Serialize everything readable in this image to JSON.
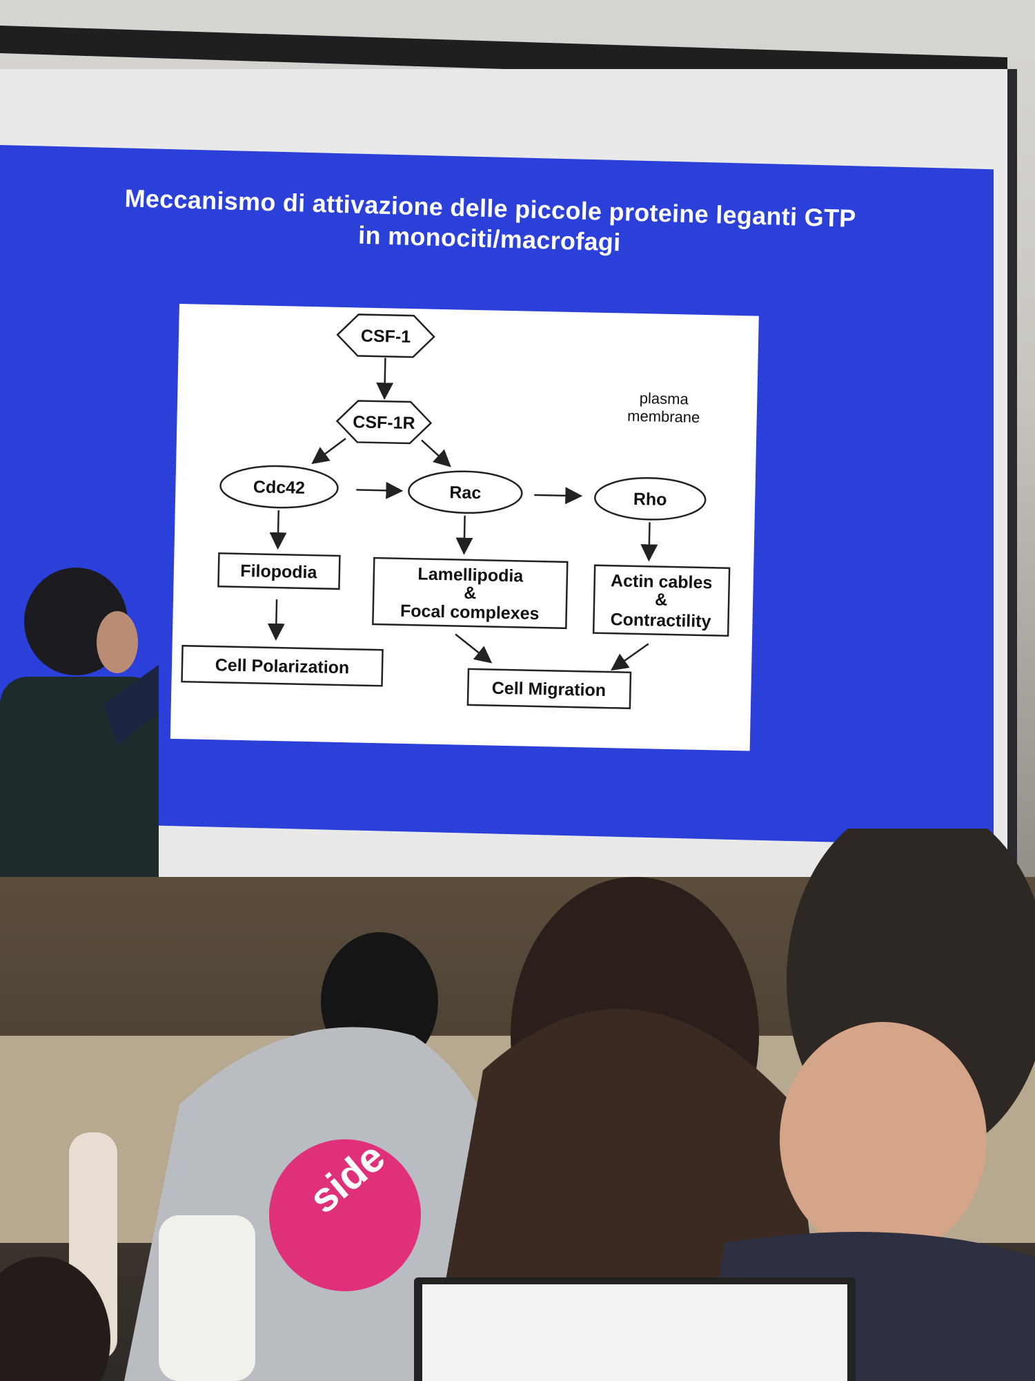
{
  "slide": {
    "title_line1": "Meccanismo di attivazione delle piccole proteine leganti GTP",
    "title_line2": "in monociti/macrofagi",
    "background_color": "#2b3fd9"
  },
  "diagram": {
    "nodes": {
      "csf1": "CSF-1",
      "csf1r": "CSF-1R",
      "cdc42": "Cdc42",
      "rac": "Rac",
      "rho": "Rho",
      "filopodia": "Filopodia",
      "lamellipodia_line1": "Lamellipodia",
      "lamellipodia_line2": "&",
      "lamellipodia_line3": "Focal complexes",
      "actin_line1": "Actin cables",
      "actin_line2": "&",
      "actin_line3": "Contractility",
      "cell_polarization": "Cell Polarization",
      "cell_migration": "Cell Migration"
    },
    "membrane_line1": "plasma",
    "membrane_line2": "membrane"
  },
  "hoodie_text": "side"
}
